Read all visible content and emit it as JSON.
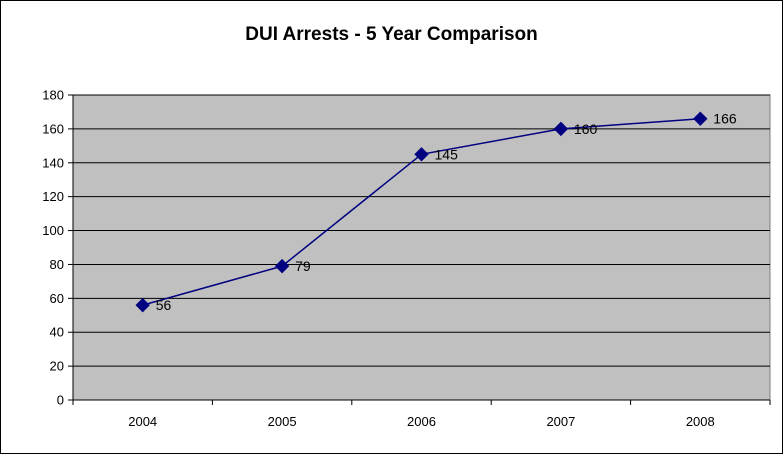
{
  "chart_data": {
    "type": "line",
    "title": "DUI Arrests - 5 Year Comparison",
    "xlabel": "",
    "ylabel": "",
    "categories": [
      "2004",
      "2005",
      "2006",
      "2007",
      "2008"
    ],
    "series": [
      {
        "values": [
          56,
          79,
          145,
          160,
          166
        ]
      }
    ],
    "data_labels": [
      "56",
      "79",
      "145",
      "160",
      "166"
    ],
    "ylim": [
      0,
      180
    ],
    "y_ticks": [
      0,
      20,
      40,
      60,
      80,
      100,
      120,
      140,
      160,
      180
    ],
    "y_tick_labels": [
      "0",
      "20",
      "40",
      "60",
      "80",
      "100",
      "120",
      "140",
      "160",
      "180"
    ],
    "grid": true,
    "legend": "none",
    "colors": {
      "plot_area": "#c0c0c0",
      "series_line": "#000080",
      "marker": "#000080",
      "gridline": "#000000"
    },
    "marker": "diamond"
  }
}
